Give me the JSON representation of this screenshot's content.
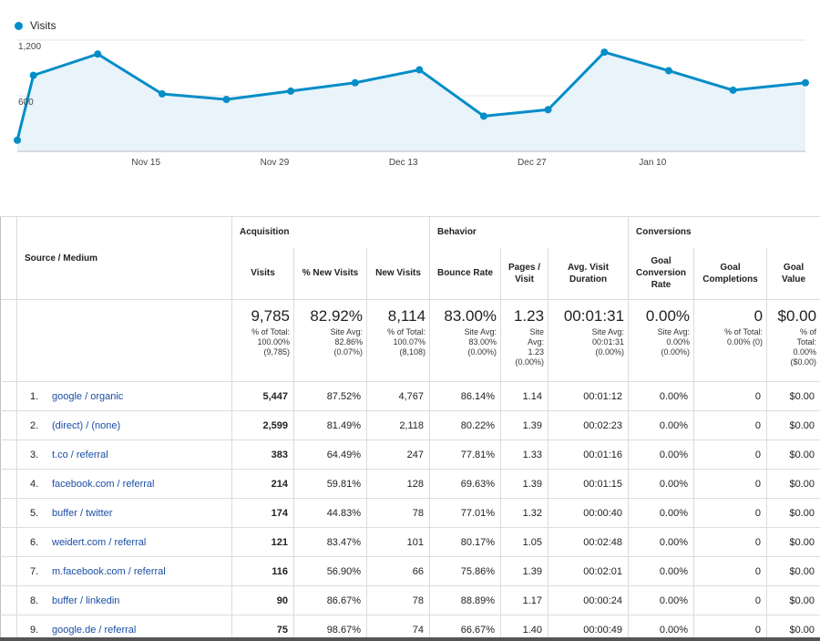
{
  "chart_data": {
    "type": "area",
    "series": [
      {
        "name": "Visits",
        "color": "#058dc7"
      }
    ],
    "x_ticks": [
      "Nov 15",
      "Nov 29",
      "Dec 13",
      "Dec 27",
      "Jan 10"
    ],
    "y_ticks": [
      "1,200",
      "600"
    ],
    "ylim": [
      0,
      1200
    ],
    "points": [
      {
        "x": 0,
        "y": 120
      },
      {
        "x": 2,
        "y": 820
      },
      {
        "x": 10,
        "y": 1050
      },
      {
        "x": 18,
        "y": 620
      },
      {
        "x": 26,
        "y": 560
      },
      {
        "x": 34,
        "y": 650
      },
      {
        "x": 42,
        "y": 740
      },
      {
        "x": 50,
        "y": 880
      },
      {
        "x": 58,
        "y": 380
      },
      {
        "x": 66,
        "y": 450
      },
      {
        "x": 73,
        "y": 1070
      },
      {
        "x": 81,
        "y": 870
      },
      {
        "x": 89,
        "y": 660
      },
      {
        "x": 98,
        "y": 740
      }
    ],
    "tick_positions": [
      16,
      32,
      48,
      64,
      79
    ],
    "x_range": [
      0,
      98
    ],
    "grid": true,
    "legend": "top-left"
  },
  "table": {
    "groups": {
      "acquisition": "Acquisition",
      "behavior": "Behavior",
      "conversions": "Conversions"
    },
    "headers": {
      "source": "Source / Medium",
      "visits": "Visits",
      "new_pct": "% New Visits",
      "new_visits": "New Visits",
      "bounce": "Bounce Rate",
      "pages": "Pages / Visit",
      "duration": "Avg. Visit Duration",
      "goal_rate": "Goal Conversion Rate",
      "goal_comp": "Goal Completions",
      "goal_value": "Goal Value"
    },
    "totals": {
      "visits": {
        "value": "9,785",
        "sub": "% of Total:\n100.00%\n(9,785)"
      },
      "new_pct": {
        "value": "82.92%",
        "sub": "Site Avg:\n82.86%\n(0.07%)"
      },
      "new_visits": {
        "value": "8,114",
        "sub": "% of Total:\n100.07%\n(8,108)"
      },
      "bounce": {
        "value": "83.00%",
        "sub": "Site Avg:\n83.00%\n(0.00%)"
      },
      "pages": {
        "value": "1.23",
        "sub": "Site\nAvg:\n1.23\n(0.00%)"
      },
      "duration": {
        "value": "00:01:31",
        "sub": "Site Avg:\n00:01:31\n(0.00%)"
      },
      "goal_rate": {
        "value": "0.00%",
        "sub": "Site Avg:\n0.00%\n(0.00%)"
      },
      "goal_comp": {
        "value": "0",
        "sub": "% of Total:\n0.00% (0)"
      },
      "goal_value": {
        "value": "$0.00",
        "sub": "% of\nTotal:\n0.00%\n($0.00)"
      }
    },
    "rows": [
      {
        "n": "1.",
        "source": "google / organic",
        "visits": "5,447",
        "new_pct": "87.52%",
        "new_visits": "4,767",
        "bounce": "86.14%",
        "pages": "1.14",
        "duration": "00:01:12",
        "goal_rate": "0.00%",
        "goal_comp": "0",
        "goal_value": "$0.00"
      },
      {
        "n": "2.",
        "source": "(direct) / (none)",
        "visits": "2,599",
        "new_pct": "81.49%",
        "new_visits": "2,118",
        "bounce": "80.22%",
        "pages": "1.39",
        "duration": "00:02:23",
        "goal_rate": "0.00%",
        "goal_comp": "0",
        "goal_value": "$0.00"
      },
      {
        "n": "3.",
        "source": "t.co / referral",
        "visits": "383",
        "new_pct": "64.49%",
        "new_visits": "247",
        "bounce": "77.81%",
        "pages": "1.33",
        "duration": "00:01:16",
        "goal_rate": "0.00%",
        "goal_comp": "0",
        "goal_value": "$0.00"
      },
      {
        "n": "4.",
        "source": "facebook.com / referral",
        "visits": "214",
        "new_pct": "59.81%",
        "new_visits": "128",
        "bounce": "69.63%",
        "pages": "1.39",
        "duration": "00:01:15",
        "goal_rate": "0.00%",
        "goal_comp": "0",
        "goal_value": "$0.00"
      },
      {
        "n": "5.",
        "source": "buffer / twitter",
        "visits": "174",
        "new_pct": "44.83%",
        "new_visits": "78",
        "bounce": "77.01%",
        "pages": "1.32",
        "duration": "00:00:40",
        "goal_rate": "0.00%",
        "goal_comp": "0",
        "goal_value": "$0.00"
      },
      {
        "n": "6.",
        "source": "weidert.com / referral",
        "visits": "121",
        "new_pct": "83.47%",
        "new_visits": "101",
        "bounce": "80.17%",
        "pages": "1.05",
        "duration": "00:02:48",
        "goal_rate": "0.00%",
        "goal_comp": "0",
        "goal_value": "$0.00"
      },
      {
        "n": "7.",
        "source": "m.facebook.com / referral",
        "visits": "116",
        "new_pct": "56.90%",
        "new_visits": "66",
        "bounce": "75.86%",
        "pages": "1.39",
        "duration": "00:02:01",
        "goal_rate": "0.00%",
        "goal_comp": "0",
        "goal_value": "$0.00"
      },
      {
        "n": "8.",
        "source": "buffer / linkedin",
        "visits": "90",
        "new_pct": "86.67%",
        "new_visits": "78",
        "bounce": "88.89%",
        "pages": "1.17",
        "duration": "00:00:24",
        "goal_rate": "0.00%",
        "goal_comp": "0",
        "goal_value": "$0.00"
      },
      {
        "n": "9.",
        "source": "google.de / referral",
        "visits": "75",
        "new_pct": "98.67%",
        "new_visits": "74",
        "bounce": "66.67%",
        "pages": "1.40",
        "duration": "00:00:49",
        "goal_rate": "0.00%",
        "goal_comp": "0",
        "goal_value": "$0.00"
      }
    ]
  }
}
